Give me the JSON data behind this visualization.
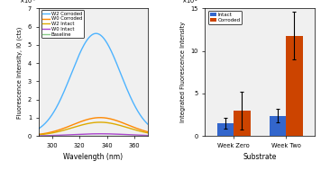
{
  "left_xlabel": "Wavelength (nm)",
  "left_ylabel": "Fluorescence Intensity, I0 (cts)",
  "left_xlim": [
    290,
    370
  ],
  "left_ylim": [
    0,
    70000.0
  ],
  "left_yticks": [
    0,
    10000.0,
    20000.0,
    30000.0,
    40000.0,
    50000.0,
    60000.0,
    70000.0
  ],
  "left_xticks": [
    300,
    320,
    340,
    360
  ],
  "legend_labels": [
    "W2 Corroded",
    "W0 Corroded",
    "W2 Intact",
    "W0 Intact",
    "Baseline"
  ],
  "legend_colors": [
    "#4db3ff",
    "#ff8800",
    "#ddaa00",
    "#aa44cc",
    "#88cc88"
  ],
  "right_xlabel": "Substrate",
  "right_ylabel": "Integrated Fluorescence Intensity",
  "right_ylim": [
    0,
    1500000.0
  ],
  "right_yticks": [
    0,
    500000.0,
    1000000.0,
    1500000.0
  ],
  "bar_categories": [
    "Week Zero",
    "Week Two"
  ],
  "bar_intact_values": [
    150000.0,
    240000.0
  ],
  "bar_corroded_values": [
    300000.0,
    1180000.0
  ],
  "bar_intact_errors": [
    65000.0,
    80000.0
  ],
  "bar_corroded_errors": [
    220000.0,
    280000.0
  ],
  "bar_intact_color": "#3366cc",
  "bar_corroded_color": "#cc4400",
  "bar_legend_labels": [
    "Intact",
    "Corroded"
  ],
  "bar_width": 0.32,
  "axes_facecolor": "#f0f0f0",
  "fig_facecolor": "#ffffff"
}
